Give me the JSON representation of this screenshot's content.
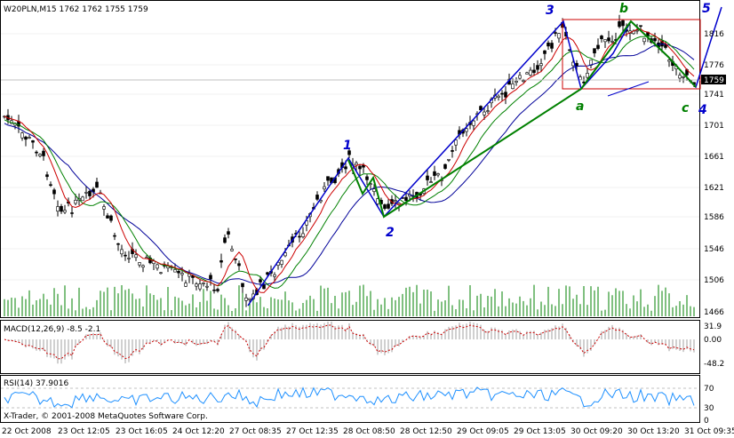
{
  "main": {
    "header": "W20PLN,M15  1762 1762 1755 1759",
    "price_label": "1759",
    "y_ticks": [
      "1816",
      "1776",
      "1741",
      "1701",
      "1661",
      "1621",
      "1586",
      "1546",
      "1506",
      "1466"
    ],
    "wave_labels": {
      "impulse": [
        "1",
        "2",
        "3",
        "4",
        "5"
      ],
      "correction": [
        "a",
        "b",
        "c"
      ]
    }
  },
  "macd": {
    "header": "MACD(12,26,9) -8.5 -2.1",
    "y_ticks": [
      "31.9",
      "0.00",
      "-48.2"
    ]
  },
  "rsi": {
    "header": "RSI(14) 37.9016",
    "y_ticks": [
      "70",
      "30",
      "0"
    ]
  },
  "footer": {
    "copyright": "X-Trader, © 2001-2008 MetaQuotes Software Corp."
  },
  "x_axis": {
    "labels": [
      "22 Oct 2008",
      "23 Oct 12:05",
      "23 Oct 16:05",
      "24 Oct 12:20",
      "27 Oct 08:35",
      "27 Oct 12:35",
      "28 Oct 08:50",
      "28 Oct 12:50",
      "29 Oct 09:05",
      "29 Oct 13:05",
      "30 Oct 09:20",
      "30 Oct 13:20",
      "31 Oct 09:35"
    ]
  },
  "colors": {
    "candles": "#000000",
    "ma_fast": "#cc0000",
    "ma_mid": "#008000",
    "ma_slow": "#000099",
    "wave_impulse": "#0000cc",
    "wave_correction": "#008000",
    "macd_signal": "#cc0000",
    "rsi": "#1e90ff"
  }
}
